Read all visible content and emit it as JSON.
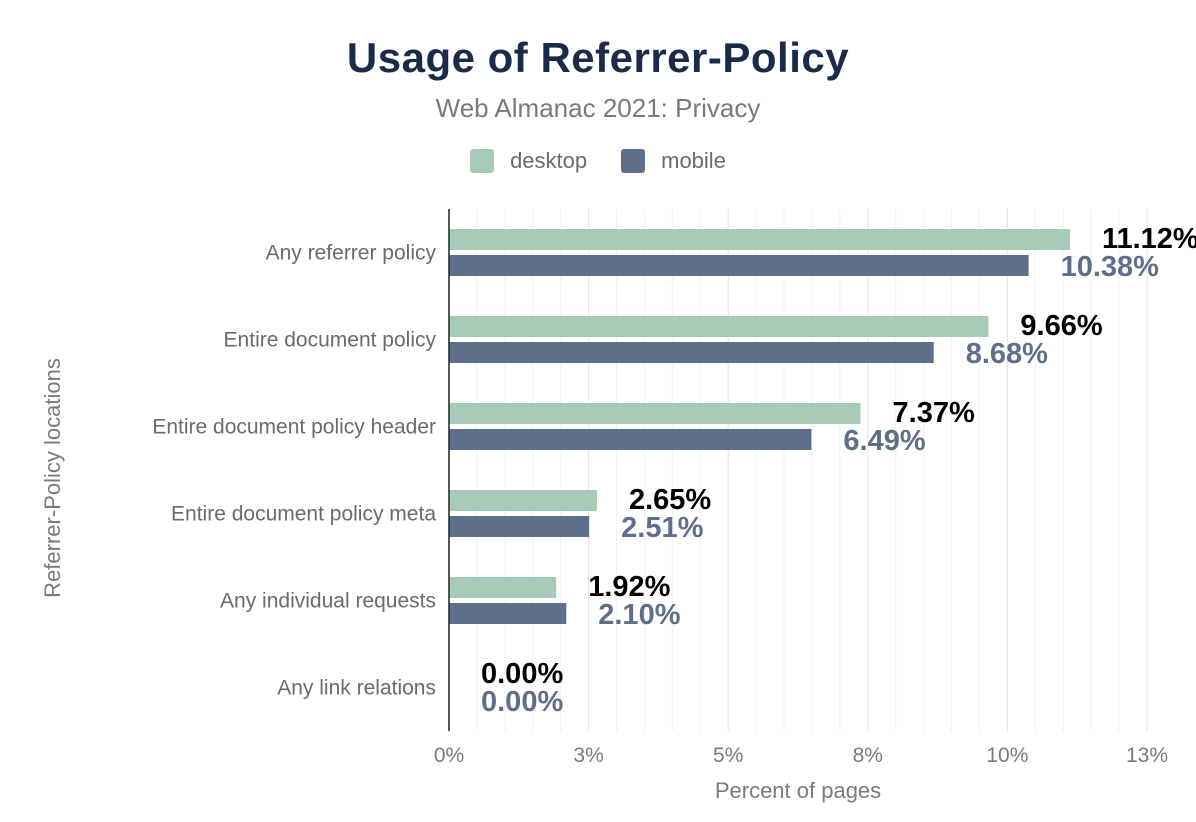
{
  "chart_data": {
    "type": "bar",
    "orientation": "horizontal",
    "title": "Usage of Referrer-Policy",
    "subtitle": "Web Almanac 2021: Privacy",
    "xlabel": "Percent of pages",
    "ylabel": "Referrer-Policy locations",
    "categories": [
      "Any referrer policy",
      "Entire document policy",
      "Entire document policy header",
      "Entire document policy meta",
      "Any individual requests",
      "Any link relations"
    ],
    "series": [
      {
        "name": "desktop",
        "color": "#a8cbb8",
        "label_color": "#000000",
        "values": [
          11.12,
          9.66,
          7.37,
          2.65,
          1.92,
          0.0
        ],
        "labels": [
          "11.12%",
          "9.66%",
          "7.37%",
          "2.65%",
          "1.92%",
          "0.00%"
        ]
      },
      {
        "name": "mobile",
        "color": "#5f6f8a",
        "label_color": "#5f6f8a",
        "values": [
          10.38,
          8.68,
          6.49,
          2.51,
          2.1,
          0.0
        ],
        "labels": [
          "10.38%",
          "8.68%",
          "6.49%",
          "2.51%",
          "2.10%",
          "0.00%"
        ]
      }
    ],
    "x_ticks": [
      0,
      2.5,
      5,
      7.5,
      10,
      12.5
    ],
    "x_tick_labels": [
      "0%",
      "3%",
      "5%",
      "8%",
      "10%",
      "13%"
    ],
    "xlim": [
      0,
      12.5
    ],
    "grid": true,
    "legend_position": "top-center"
  }
}
